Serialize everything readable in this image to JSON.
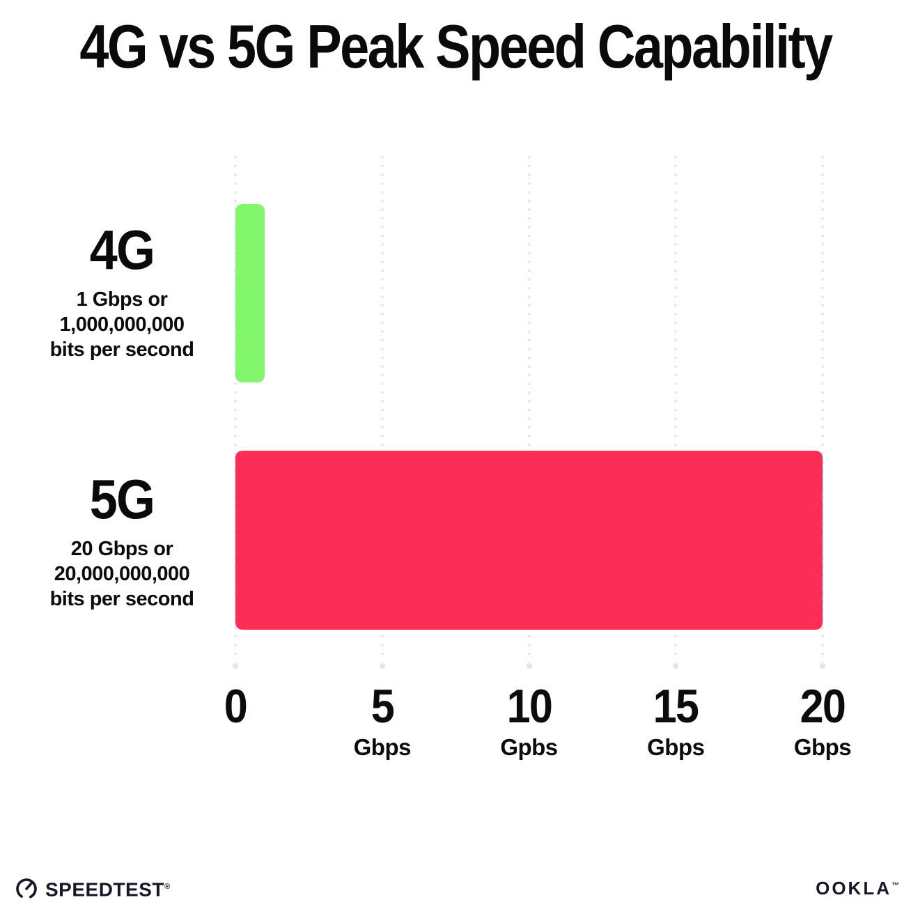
{
  "title": "4G vs 5G Peak Speed Capability",
  "chart_data": {
    "type": "bar",
    "orientation": "horizontal",
    "title": "4G vs 5G Peak Speed Capability",
    "xlabel": "Gbps",
    "ylabel": "",
    "xlim": [
      0,
      20
    ],
    "grid": "vertical dotted gridlines at 0, 5, 10, 15, 20",
    "rows": [
      {
        "label": "4G",
        "sublabel_line1": "1 Gbps or",
        "sublabel_line2": "1,000,000,000",
        "sublabel_line3": "bits per second",
        "value": 1,
        "unit": "Gbps",
        "color": "#82F76C"
      },
      {
        "label": "5G",
        "sublabel_line1": "20 Gbps or",
        "sublabel_line2": "20,000,000,000",
        "sublabel_line3": "bits per second",
        "value": 20,
        "unit": "Gbps",
        "color": "#FC2D56"
      }
    ],
    "x_ticks": [
      {
        "value": "0",
        "unit": ""
      },
      {
        "value": "5",
        "unit": "Gbps"
      },
      {
        "value": "10",
        "unit": "Gpbs"
      },
      {
        "value": "15",
        "unit": "Gbps"
      },
      {
        "value": "20",
        "unit": "Gbps"
      }
    ],
    "gridline_color": "#E3E3F0",
    "text_color": "#0A0A0A"
  },
  "footer": {
    "speedtest_logo_text": "SPEEDTEST",
    "speedtest_trademark": "®",
    "ookla_logo_text": "OOKLA",
    "ookla_trademark": "™",
    "logo_color": "#16172B"
  }
}
